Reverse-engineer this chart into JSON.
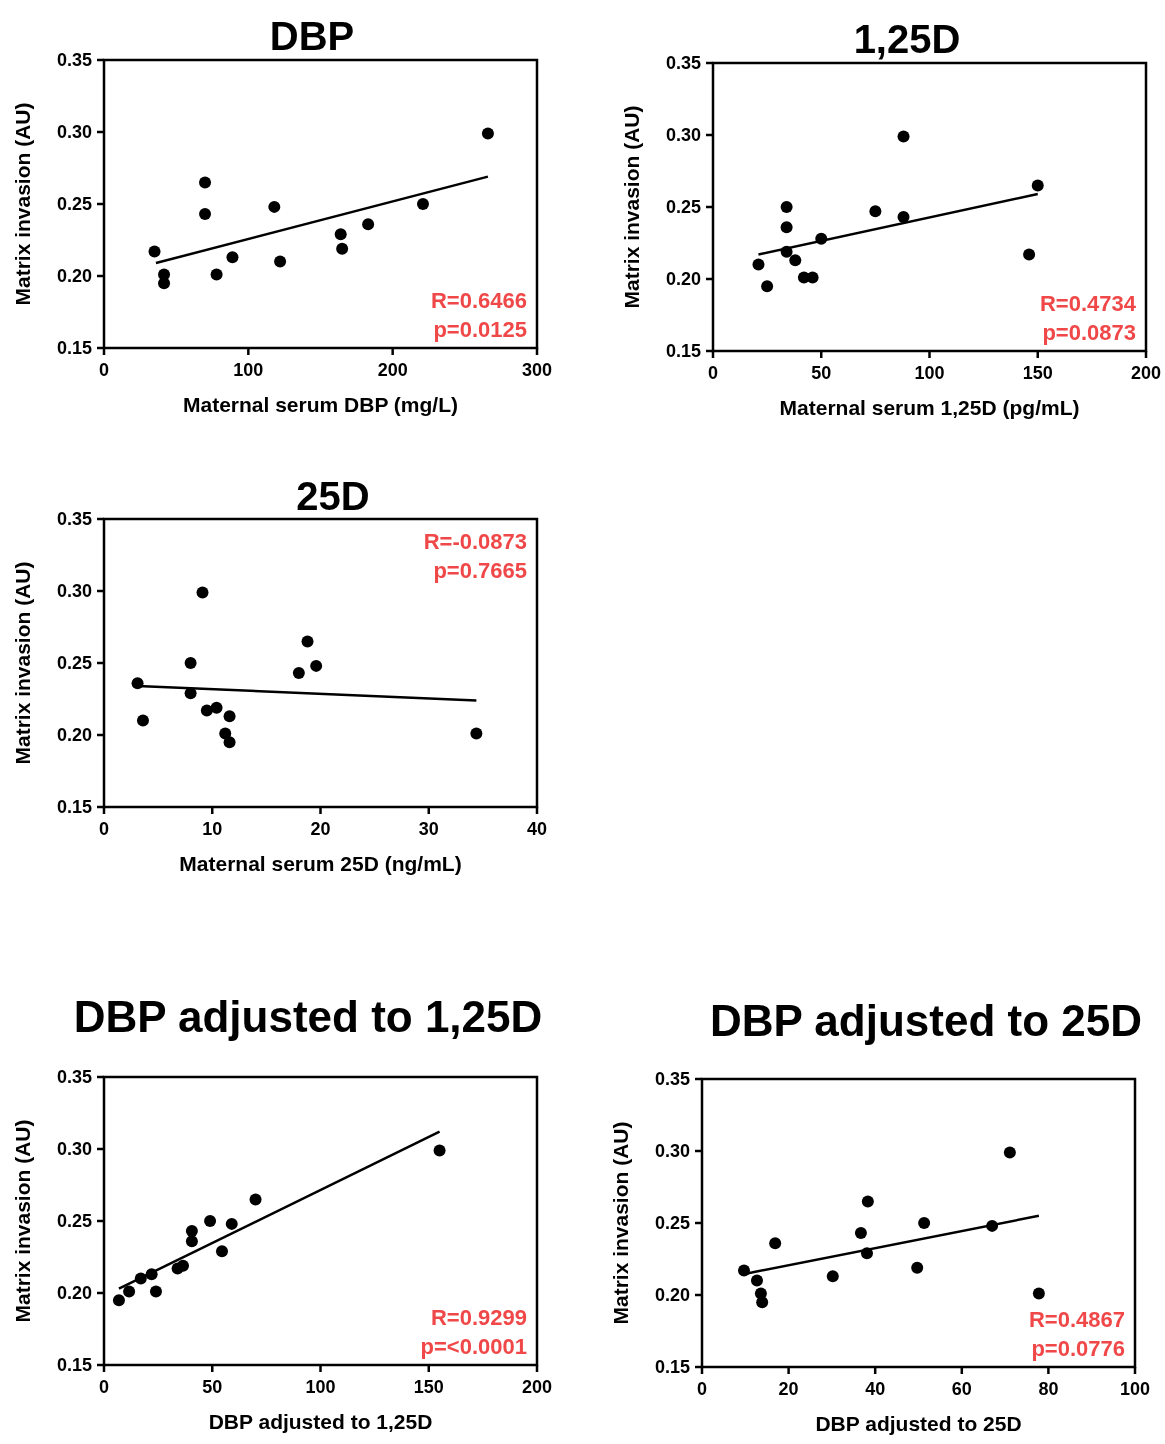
{
  "chart_data": [
    {
      "type": "scatter",
      "title": "DBP",
      "xlabel": "Maternal serum DBP (mg/L)",
      "ylabel": "Matrix invasion (AU)",
      "xlim": [
        0,
        300
      ],
      "xticks": [
        0,
        100,
        200,
        300
      ],
      "ylim": [
        0.15,
        0.35
      ],
      "yticks": [
        {
          "value": 0.15,
          "label": "0.15"
        },
        {
          "value": 0.2,
          "label": "0.20"
        },
        {
          "value": 0.25,
          "label": "0.25"
        },
        {
          "value": 0.3,
          "label": "0.30"
        },
        {
          "value": 0.35,
          "label": "0.35"
        }
      ],
      "annotations": [
        "R=0.6466",
        "p=0.0125"
      ],
      "series": [
        {
          "type": "scatter",
          "marker": "circle",
          "color": "#000000",
          "x": [
            35,
            41.6,
            41.6,
            70,
            70,
            78,
            89,
            118,
            122,
            164,
            165,
            183,
            221,
            266
          ],
          "values": [
            0.217,
            0.201,
            0.195,
            0.265,
            0.243,
            0.201,
            0.213,
            0.248,
            0.21,
            0.229,
            0.219,
            0.236,
            0.25,
            0.299
          ]
        },
        {
          "type": "line",
          "marker": "none",
          "color": "#000000",
          "x": [
            36,
            266
          ],
          "values": [
            0.209,
            0.269
          ]
        }
      ]
    },
    {
      "type": "scatter",
      "title": "1,25D",
      "xlabel": "Maternal serum 1,25D (pg/mL)",
      "ylabel": "Matrix invasion (AU)",
      "xlim": [
        0,
        200
      ],
      "xticks": [
        0,
        50,
        100,
        150,
        200
      ],
      "ylim": [
        0.15,
        0.35
      ],
      "yticks": [
        {
          "value": 0.15,
          "label": "0.15"
        },
        {
          "value": 0.2,
          "label": "0.20"
        },
        {
          "value": 0.25,
          "label": "0.25"
        },
        {
          "value": 0.3,
          "label": "0.30"
        },
        {
          "value": 0.35,
          "label": "0.35"
        }
      ],
      "annotations": [
        "R=0.4734",
        "p=0.0873"
      ],
      "series": [
        {
          "type": "scatter",
          "marker": "circle",
          "color": "#000000",
          "x": [
            21,
            25,
            34,
            34,
            34,
            38,
            42,
            46,
            50,
            75,
            88,
            88,
            146,
            150
          ],
          "values": [
            0.21,
            0.195,
            0.25,
            0.236,
            0.219,
            0.213,
            0.201,
            0.201,
            0.228,
            0.247,
            0.243,
            0.299,
            0.217,
            0.265
          ]
        },
        {
          "type": "line",
          "marker": "none",
          "color": "#000000",
          "x": [
            21,
            150
          ],
          "values": [
            0.217,
            0.259
          ]
        }
      ]
    },
    {
      "type": "scatter",
      "title": "25D",
      "xlabel": "Maternal serum 25D (ng/mL)",
      "ylabel": "Matrix invasion (AU)",
      "xlim": [
        0,
        40
      ],
      "xticks": [
        0,
        10,
        20,
        30,
        40
      ],
      "ylim": [
        0.15,
        0.35
      ],
      "yticks": [
        {
          "value": 0.15,
          "label": "0.15"
        },
        {
          "value": 0.2,
          "label": "0.20"
        },
        {
          "value": 0.25,
          "label": "0.25"
        },
        {
          "value": 0.3,
          "label": "0.30"
        },
        {
          "value": 0.35,
          "label": "0.35"
        }
      ],
      "annotations": [
        "R=-0.0873",
        "p=0.7665"
      ],
      "series": [
        {
          "type": "scatter",
          "marker": "circle",
          "color": "#000000",
          "x": [
            3.1,
            3.6,
            8,
            8,
            9.1,
            9.5,
            10.4,
            11.6,
            11.2,
            11.6,
            18,
            18.8,
            19.6,
            34.4
          ],
          "values": [
            0.236,
            0.21,
            0.25,
            0.229,
            0.299,
            0.217,
            0.219,
            0.213,
            0.201,
            0.195,
            0.243,
            0.265,
            0.248,
            0.201
          ]
        },
        {
          "type": "line",
          "marker": "none",
          "color": "#000000",
          "x": [
            3.1,
            34.4
          ],
          "values": [
            0.234,
            0.224
          ]
        }
      ]
    },
    {
      "type": "scatter",
      "title": "DBP adjusted to 1,25D",
      "xlabel": "DBP adjusted to 1,25D",
      "ylabel": "Matrix invasion (AU)",
      "xlim": [
        0,
        200
      ],
      "xticks": [
        0,
        50,
        100,
        150,
        200
      ],
      "ylim": [
        0.15,
        0.35
      ],
      "yticks": [
        {
          "value": 0.15,
          "label": "0.15"
        },
        {
          "value": 0.2,
          "label": "0.20"
        },
        {
          "value": 0.25,
          "label": "0.25"
        },
        {
          "value": 0.3,
          "label": "0.30"
        },
        {
          "value": 0.35,
          "label": "0.35"
        }
      ],
      "annotations": [
        "R=0.9299",
        "p=<0.0001"
      ],
      "series": [
        {
          "type": "scatter",
          "marker": "circle",
          "color": "#000000",
          "x": [
            6.9,
            11.6,
            17,
            22,
            24,
            34,
            36.5,
            40.6,
            40.6,
            49,
            54.5,
            59,
            70,
            155
          ],
          "values": [
            0.195,
            0.201,
            0.21,
            0.213,
            0.201,
            0.217,
            0.219,
            0.236,
            0.243,
            0.25,
            0.229,
            0.248,
            0.265,
            0.299
          ]
        },
        {
          "type": "line",
          "marker": "none",
          "color": "#000000",
          "x": [
            6.9,
            155
          ],
          "values": [
            0.203,
            0.312
          ]
        }
      ]
    },
    {
      "type": "scatter",
      "title": "DBP adjusted to 25D",
      "xlabel": "DBP adjusted to 25D",
      "ylabel": "Matrix invasion (AU)",
      "xlim": [
        0,
        100
      ],
      "xticks": [
        0,
        20,
        40,
        60,
        80,
        100
      ],
      "ylim": [
        0.15,
        0.35
      ],
      "yticks": [
        {
          "value": 0.15,
          "label": "0.15"
        },
        {
          "value": 0.2,
          "label": "0.20"
        },
        {
          "value": 0.25,
          "label": "0.25"
        },
        {
          "value": 0.3,
          "label": "0.30"
        },
        {
          "value": 0.35,
          "label": "0.35"
        }
      ],
      "annotations": [
        "R=0.4867",
        "p=0.0776"
      ],
      "series": [
        {
          "type": "scatter",
          "marker": "circle",
          "color": "#000000",
          "x": [
            9.7,
            12.7,
            13.6,
            13.9,
            16.9,
            30.2,
            36.7,
            38.3,
            38.1,
            49.7,
            51.3,
            67,
            71.1,
            77.8
          ],
          "values": [
            0.217,
            0.21,
            0.201,
            0.195,
            0.236,
            0.213,
            0.243,
            0.265,
            0.229,
            0.219,
            0.25,
            0.248,
            0.299,
            0.201
          ]
        },
        {
          "type": "line",
          "marker": "none",
          "color": "#000000",
          "x": [
            10.4,
            77.8
          ],
          "values": [
            0.215,
            0.255
          ]
        }
      ]
    }
  ]
}
